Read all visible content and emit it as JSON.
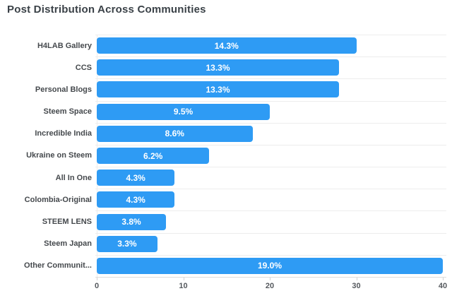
{
  "chart_data": {
    "type": "bar",
    "orientation": "horizontal",
    "title": "Post Distribution Across Communities",
    "categories": [
      "H4LAB Gallery",
      "CCS",
      "Personal Blogs",
      "Steem Space",
      "Incredible India",
      "Ukraine on Steem",
      "All In One",
      "Colombia-Original",
      "STEEM LENS",
      "Steem Japan",
      "Other Communit..."
    ],
    "values": [
      30,
      28,
      28,
      20,
      18,
      13,
      9,
      9,
      8,
      7,
      40
    ],
    "bar_labels": [
      "14.3%",
      "13.3%",
      "13.3%",
      "9.5%",
      "8.6%",
      "6.2%",
      "4.3%",
      "4.3%",
      "3.8%",
      "3.3%",
      "19.0%"
    ],
    "xlabel": "",
    "ylabel": "",
    "xlim": [
      0,
      40
    ],
    "xticks": [
      0,
      10,
      20,
      30,
      40
    ],
    "grid": "horizontal row separators only, light gray; no vertical gridlines",
    "legend": "none",
    "colors": {
      "bar": "#2e9bf4",
      "bar_label": "#ffffff",
      "title": "#3a4147",
      "category_label": "#45494d",
      "tick_label": "#55595e",
      "gridline": "#ededed",
      "axis_line": "#dcdcdc",
      "tick_mark": "#d3d3d3",
      "background": "#ffffff"
    }
  }
}
